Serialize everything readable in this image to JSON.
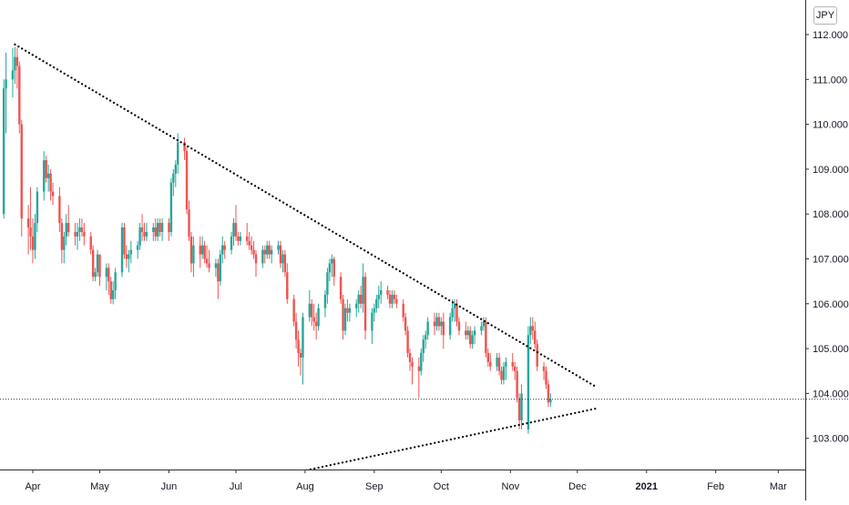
{
  "currency_badge": "JPY",
  "colors": {
    "up": "#26a69a",
    "down": "#ef5350",
    "trendline": "#000000",
    "price_line": "#2a2e39",
    "axis": "#2a2e39",
    "text": "#131722"
  },
  "chart_data": {
    "type": "candlestick",
    "title": "",
    "xlabel": "",
    "ylabel": "",
    "ylim": [
      102.25,
      112.6
    ],
    "y_ticks": [
      "112.000",
      "111.000",
      "110.000",
      "109.000",
      "108.000",
      "107.000",
      "106.000",
      "105.000",
      "104.000",
      "103.000"
    ],
    "x_ticks": [
      {
        "label": "Apr",
        "date": "2020-04-01"
      },
      {
        "label": "May",
        "date": "2020-05-01"
      },
      {
        "label": "Jun",
        "date": "2020-06-01"
      },
      {
        "label": "Jul",
        "date": "2020-07-01"
      },
      {
        "label": "Aug",
        "date": "2020-08-01"
      },
      {
        "label": "Sep",
        "date": "2020-09-01"
      },
      {
        "label": "Oct",
        "date": "2020-10-01"
      },
      {
        "label": "Nov",
        "date": "2020-11-01"
      },
      {
        "label": "Dec",
        "date": "2020-12-01"
      },
      {
        "label": "2021",
        "date": "2021-01-01",
        "bold": true
      },
      {
        "label": "Feb",
        "date": "2021-02-01"
      },
      {
        "label": "Mar",
        "date": "2021-03-01"
      }
    ],
    "current_price": 103.87,
    "trendlines": [
      {
        "name": "resistance",
        "style": "dotted",
        "start": {
          "date": "2020-03-24",
          "value": 111.78
        },
        "end": {
          "date": "2020-12-10",
          "value": 104.13
        }
      },
      {
        "name": "support",
        "style": "dotted",
        "start": {
          "date": "2020-07-29",
          "value": 102.25
        },
        "end": {
          "date": "2020-12-10",
          "value": 103.67
        }
      }
    ],
    "candles": [
      [
        "2020-03-19",
        108.0,
        111.0,
        107.9,
        110.8
      ],
      [
        "2020-03-20",
        110.8,
        111.6,
        109.8,
        111.0
      ],
      [
        "2020-03-23",
        111.0,
        111.7,
        110.6,
        111.2
      ],
      [
        "2020-03-24",
        111.2,
        111.72,
        110.9,
        111.5
      ],
      [
        "2020-03-25",
        111.5,
        111.7,
        110.8,
        111.3
      ],
      [
        "2020-03-26",
        111.3,
        111.4,
        109.8,
        110.0
      ],
      [
        "2020-03-27",
        110.0,
        110.1,
        107.5,
        107.9
      ],
      [
        "2020-03-30",
        107.9,
        108.2,
        107.1,
        107.7
      ],
      [
        "2020-03-31",
        107.7,
        108.6,
        107.2,
        107.5
      ],
      [
        "2020-04-01",
        107.5,
        107.9,
        106.9,
        107.2
      ],
      [
        "2020-04-02",
        107.2,
        108.0,
        107.0,
        107.8
      ],
      [
        "2020-04-03",
        107.8,
        108.6,
        107.6,
        108.5
      ],
      [
        "2020-04-06",
        108.5,
        109.4,
        108.3,
        109.2
      ],
      [
        "2020-04-07",
        109.2,
        109.3,
        108.7,
        108.8
      ],
      [
        "2020-04-08",
        108.8,
        109.1,
        108.5,
        108.9
      ],
      [
        "2020-04-09",
        108.9,
        109.0,
        108.3,
        108.5
      ],
      [
        "2020-04-10",
        108.5,
        108.7,
        108.2,
        108.4
      ],
      [
        "2020-04-13",
        108.4,
        108.6,
        107.6,
        107.8
      ],
      [
        "2020-04-14",
        107.8,
        107.9,
        106.9,
        107.2
      ],
      [
        "2020-04-15",
        107.2,
        107.6,
        106.9,
        107.5
      ],
      [
        "2020-04-16",
        107.5,
        108.0,
        107.3,
        107.8
      ],
      [
        "2020-04-17",
        107.8,
        108.2,
        107.5,
        107.6
      ],
      [
        "2020-04-20",
        107.6,
        107.8,
        107.3,
        107.5
      ],
      [
        "2020-04-21",
        107.5,
        107.8,
        107.2,
        107.6
      ],
      [
        "2020-04-22",
        107.6,
        107.9,
        107.4,
        107.7
      ],
      [
        "2020-04-23",
        107.7,
        107.9,
        107.5,
        107.6
      ],
      [
        "2020-04-24",
        107.6,
        107.8,
        107.3,
        107.5
      ],
      [
        "2020-04-27",
        107.5,
        107.6,
        107.1,
        107.2
      ],
      [
        "2020-04-28",
        107.2,
        107.3,
        106.5,
        106.6
      ],
      [
        "2020-04-29",
        106.6,
        106.8,
        106.5,
        106.7
      ],
      [
        "2020-04-30",
        106.7,
        107.2,
        106.6,
        107.1
      ],
      [
        "2020-05-01",
        107.1,
        107.1,
        106.4,
        106.6
      ],
      [
        "2020-05-04",
        106.6,
        106.9,
        106.3,
        106.8
      ],
      [
        "2020-05-05",
        106.8,
        106.9,
        106.2,
        106.5
      ],
      [
        "2020-05-06",
        106.5,
        106.6,
        106.0,
        106.1
      ],
      [
        "2020-05-07",
        106.1,
        106.5,
        105.99,
        106.3
      ],
      [
        "2020-05-08",
        106.3,
        106.8,
        106.1,
        106.7
      ],
      [
        "2020-05-11",
        106.7,
        107.8,
        106.6,
        107.7
      ],
      [
        "2020-05-12",
        107.7,
        107.8,
        107.0,
        107.1
      ],
      [
        "2020-05-13",
        107.1,
        107.3,
        106.8,
        107.0
      ],
      [
        "2020-05-14",
        107.0,
        107.2,
        106.7,
        107.1
      ],
      [
        "2020-05-15",
        107.1,
        107.4,
        106.9,
        107.2
      ],
      [
        "2020-05-18",
        107.2,
        107.4,
        107.0,
        107.3
      ],
      [
        "2020-05-19",
        107.3,
        107.8,
        107.2,
        107.7
      ],
      [
        "2020-05-20",
        107.7,
        108.0,
        107.4,
        107.6
      ],
      [
        "2020-05-21",
        107.6,
        107.8,
        107.4,
        107.5
      ],
      [
        "2020-05-22",
        107.5,
        107.8,
        107.4,
        107.6
      ],
      [
        "2020-05-25",
        107.6,
        107.8,
        107.4,
        107.7
      ],
      [
        "2020-05-26",
        107.7,
        107.9,
        107.4,
        107.5
      ],
      [
        "2020-05-27",
        107.5,
        107.9,
        107.4,
        107.8
      ],
      [
        "2020-05-28",
        107.8,
        107.9,
        107.5,
        107.6
      ],
      [
        "2020-05-29",
        107.6,
        107.9,
        107.4,
        107.8
      ],
      [
        "2020-06-01",
        107.8,
        107.9,
        107.4,
        107.6
      ],
      [
        "2020-06-02",
        107.6,
        108.8,
        107.5,
        108.7
      ],
      [
        "2020-06-03",
        108.7,
        109.0,
        108.4,
        108.9
      ],
      [
        "2020-06-04",
        108.9,
        109.2,
        108.6,
        109.1
      ],
      [
        "2020-06-05",
        109.1,
        109.8,
        108.9,
        109.6
      ],
      [
        "2020-06-08",
        109.6,
        109.7,
        109.2,
        109.4
      ],
      [
        "2020-06-09",
        109.4,
        109.5,
        108.0,
        108.1
      ],
      [
        "2020-06-10",
        108.1,
        108.3,
        107.4,
        107.5
      ],
      [
        "2020-06-11",
        107.5,
        107.6,
        106.7,
        106.9
      ],
      [
        "2020-06-12",
        106.9,
        107.5,
        106.6,
        107.3
      ],
      [
        "2020-06-15",
        107.3,
        107.5,
        106.8,
        107.1
      ],
      [
        "2020-06-16",
        107.1,
        107.5,
        107.0,
        107.3
      ],
      [
        "2020-06-17",
        107.3,
        107.4,
        106.9,
        107.0
      ],
      [
        "2020-06-18",
        107.0,
        107.3,
        106.8,
        106.9
      ],
      [
        "2020-06-19",
        106.9,
        107.2,
        106.7,
        106.8
      ],
      [
        "2020-06-22",
        106.8,
        107.0,
        106.6,
        106.9
      ],
      [
        "2020-06-23",
        106.9,
        107.0,
        106.1,
        106.5
      ],
      [
        "2020-06-24",
        106.5,
        107.2,
        106.4,
        107.1
      ],
      [
        "2020-06-25",
        107.1,
        107.5,
        106.9,
        107.3
      ],
      [
        "2020-06-26",
        107.3,
        107.4,
        107.0,
        107.2
      ],
      [
        "2020-06-29",
        107.2,
        107.6,
        107.1,
        107.5
      ],
      [
        "2020-06-30",
        107.5,
        107.9,
        107.3,
        107.8
      ],
      [
        "2020-07-01",
        107.8,
        108.2,
        107.4,
        107.5
      ],
      [
        "2020-07-02",
        107.5,
        107.6,
        107.3,
        107.4
      ],
      [
        "2020-07-03",
        107.4,
        107.6,
        107.3,
        107.5
      ],
      [
        "2020-07-06",
        107.5,
        107.8,
        107.3,
        107.4
      ],
      [
        "2020-07-07",
        107.4,
        107.6,
        107.2,
        107.3
      ],
      [
        "2020-07-08",
        107.3,
        107.5,
        107.1,
        107.2
      ],
      [
        "2020-07-09",
        107.2,
        107.4,
        107.0,
        107.1
      ],
      [
        "2020-07-10",
        107.1,
        107.2,
        106.6,
        106.9
      ],
      [
        "2020-07-13",
        106.9,
        107.3,
        106.8,
        107.2
      ],
      [
        "2020-07-14",
        107.2,
        107.3,
        106.9,
        107.1
      ],
      [
        "2020-07-15",
        107.1,
        107.4,
        107.0,
        107.3
      ],
      [
        "2020-07-16",
        107.3,
        107.4,
        107.0,
        107.1
      ],
      [
        "2020-07-17",
        107.1,
        107.3,
        106.9,
        107.2
      ],
      [
        "2020-07-20",
        107.2,
        107.4,
        107.1,
        107.3
      ],
      [
        "2020-07-21",
        107.3,
        107.4,
        106.8,
        106.9
      ],
      [
        "2020-07-22",
        106.9,
        107.2,
        106.7,
        107.1
      ],
      [
        "2020-07-23",
        107.1,
        107.2,
        106.6,
        106.7
      ],
      [
        "2020-07-24",
        106.7,
        106.9,
        106.0,
        106.1
      ],
      [
        "2020-07-27",
        106.1,
        106.2,
        105.5,
        105.6
      ],
      [
        "2020-07-28",
        105.6,
        105.8,
        105.0,
        105.2
      ],
      [
        "2020-07-29",
        105.2,
        105.4,
        104.6,
        104.9
      ],
      [
        "2020-07-30",
        104.9,
        105.0,
        104.4,
        104.8
      ],
      [
        "2020-07-31",
        104.8,
        105.8,
        104.2,
        105.7
      ],
      [
        "2020-08-03",
        105.7,
        106.3,
        105.6,
        106.0
      ],
      [
        "2020-08-04",
        106.0,
        106.1,
        105.5,
        105.7
      ],
      [
        "2020-08-05",
        105.7,
        106.0,
        105.4,
        105.6
      ],
      [
        "2020-08-06",
        105.6,
        105.8,
        105.2,
        105.5
      ],
      [
        "2020-08-07",
        105.5,
        106.0,
        105.4,
        105.9
      ],
      [
        "2020-08-10",
        105.9,
        106.3,
        105.7,
        106.2
      ],
      [
        "2020-08-11",
        106.2,
        106.8,
        106.0,
        106.7
      ],
      [
        "2020-08-12",
        106.7,
        107.0,
        106.5,
        106.9
      ],
      [
        "2020-08-13",
        106.9,
        107.1,
        106.6,
        107.0
      ],
      [
        "2020-08-14",
        107.0,
        107.05,
        106.4,
        106.6
      ],
      [
        "2020-08-17",
        106.6,
        106.7,
        106.0,
        106.1
      ],
      [
        "2020-08-18",
        106.1,
        106.2,
        105.2,
        105.4
      ],
      [
        "2020-08-19",
        105.4,
        106.0,
        105.3,
        105.9
      ],
      [
        "2020-08-20",
        105.9,
        106.1,
        105.6,
        105.8
      ],
      [
        "2020-08-21",
        105.8,
        106.0,
        105.6,
        105.9
      ],
      [
        "2020-08-24",
        105.9,
        106.1,
        105.7,
        106.0
      ],
      [
        "2020-08-25",
        106.0,
        106.3,
        105.8,
        106.2
      ],
      [
        "2020-08-26",
        106.2,
        106.4,
        105.9,
        106.0
      ],
      [
        "2020-08-27",
        106.0,
        106.9,
        105.8,
        106.6
      ],
      [
        "2020-08-28",
        106.6,
        106.7,
        105.2,
        105.4
      ],
      [
        "2020-08-31",
        105.4,
        105.9,
        105.1,
        105.8
      ],
      [
        "2020-09-01",
        105.8,
        106.0,
        105.6,
        105.9
      ],
      [
        "2020-09-02",
        105.9,
        106.2,
        105.8,
        106.1
      ],
      [
        "2020-09-03",
        106.1,
        106.4,
        105.9,
        106.2
      ],
      [
        "2020-09-04",
        106.2,
        106.5,
        106.0,
        106.3
      ],
      [
        "2020-09-07",
        106.3,
        106.4,
        106.1,
        106.2
      ],
      [
        "2020-09-08",
        106.2,
        106.3,
        105.9,
        106.0
      ],
      [
        "2020-09-09",
        106.0,
        106.3,
        105.9,
        106.2
      ],
      [
        "2020-09-10",
        106.2,
        106.3,
        106.0,
        106.1
      ],
      [
        "2020-09-11",
        106.1,
        106.2,
        105.9,
        106.0
      ],
      [
        "2020-09-14",
        106.0,
        106.1,
        105.6,
        105.7
      ],
      [
        "2020-09-15",
        105.7,
        105.8,
        105.3,
        105.4
      ],
      [
        "2020-09-16",
        105.4,
        105.5,
        104.8,
        104.9
      ],
      [
        "2020-09-17",
        104.9,
        105.0,
        104.5,
        104.7
      ],
      [
        "2020-09-18",
        104.7,
        104.8,
        104.2,
        104.6
      ],
      [
        "2020-09-21",
        104.6,
        104.8,
        103.9,
        104.5
      ],
      [
        "2020-09-22",
        104.5,
        105.0,
        104.4,
        104.9
      ],
      [
        "2020-09-23",
        104.9,
        105.3,
        104.7,
        105.2
      ],
      [
        "2020-09-24",
        105.2,
        105.4,
        105.0,
        105.3
      ],
      [
        "2020-09-25",
        105.3,
        105.7,
        105.2,
        105.6
      ],
      [
        "2020-09-28",
        105.6,
        105.8,
        105.3,
        105.5
      ],
      [
        "2020-09-29",
        105.5,
        105.8,
        105.4,
        105.7
      ],
      [
        "2020-09-30",
        105.7,
        105.8,
        105.4,
        105.5
      ],
      [
        "2020-10-01",
        105.5,
        105.7,
        105.3,
        105.6
      ],
      [
        "2020-10-02",
        105.6,
        105.8,
        105.0,
        105.3
      ],
      [
        "2020-10-05",
        105.3,
        105.8,
        105.2,
        105.7
      ],
      [
        "2020-10-06",
        105.7,
        106.1,
        105.6,
        105.9
      ],
      [
        "2020-10-07",
        105.9,
        106.1,
        105.6,
        106.0
      ],
      [
        "2020-10-08",
        106.0,
        106.1,
        105.5,
        105.6
      ],
      [
        "2020-10-09",
        105.6,
        105.7,
        105.3,
        105.4
      ],
      [
        "2020-10-12",
        105.4,
        105.6,
        105.2,
        105.3
      ],
      [
        "2020-10-13",
        105.3,
        105.5,
        105.2,
        105.4
      ],
      [
        "2020-10-14",
        105.4,
        105.5,
        105.0,
        105.1
      ],
      [
        "2020-10-15",
        105.1,
        105.4,
        105.0,
        105.3
      ],
      [
        "2020-10-16",
        105.3,
        105.5,
        105.1,
        105.4
      ],
      [
        "2020-10-19",
        105.4,
        105.6,
        105.3,
        105.5
      ],
      [
        "2020-10-20",
        105.5,
        105.7,
        105.4,
        105.6
      ],
      [
        "2020-10-21",
        105.6,
        105.7,
        104.8,
        104.9
      ],
      [
        "2020-10-22",
        104.9,
        105.0,
        104.6,
        104.7
      ],
      [
        "2020-10-23",
        104.7,
        104.9,
        104.5,
        104.6
      ],
      [
        "2020-10-26",
        104.6,
        104.9,
        104.5,
        104.8
      ],
      [
        "2020-10-27",
        104.8,
        104.9,
        104.4,
        104.5
      ],
      [
        "2020-10-28",
        104.5,
        104.6,
        104.2,
        104.3
      ],
      [
        "2020-10-29",
        104.3,
        104.7,
        104.2,
        104.6
      ],
      [
        "2020-10-30",
        104.6,
        104.8,
        104.3,
        104.7
      ],
      [
        "2020-11-02",
        104.7,
        104.9,
        104.5,
        104.6
      ],
      [
        "2020-11-03",
        104.6,
        104.7,
        104.3,
        104.5
      ],
      [
        "2020-11-04",
        104.5,
        104.6,
        103.8,
        103.9
      ],
      [
        "2020-11-05",
        103.9,
        104.0,
        103.2,
        103.4
      ],
      [
        "2020-11-06",
        103.4,
        104.2,
        103.2,
        104.0
      ],
      [
        "2020-11-09",
        103.2,
        105.5,
        103.1,
        105.3
      ],
      [
        "2020-11-10",
        105.3,
        105.7,
        105.1,
        105.5
      ],
      [
        "2020-11-11",
        105.5,
        105.7,
        105.2,
        105.4
      ],
      [
        "2020-11-12",
        105.4,
        105.6,
        105.0,
        105.1
      ],
      [
        "2020-11-13",
        105.1,
        105.2,
        104.5,
        104.6
      ],
      [
        "2020-11-16",
        104.6,
        104.7,
        104.3,
        104.5
      ],
      [
        "2020-11-17",
        104.5,
        104.6,
        104.1,
        104.2
      ],
      [
        "2020-11-18",
        104.2,
        104.3,
        103.7,
        103.8
      ],
      [
        "2020-11-19",
        103.8,
        104.0,
        103.7,
        103.87
      ]
    ]
  }
}
